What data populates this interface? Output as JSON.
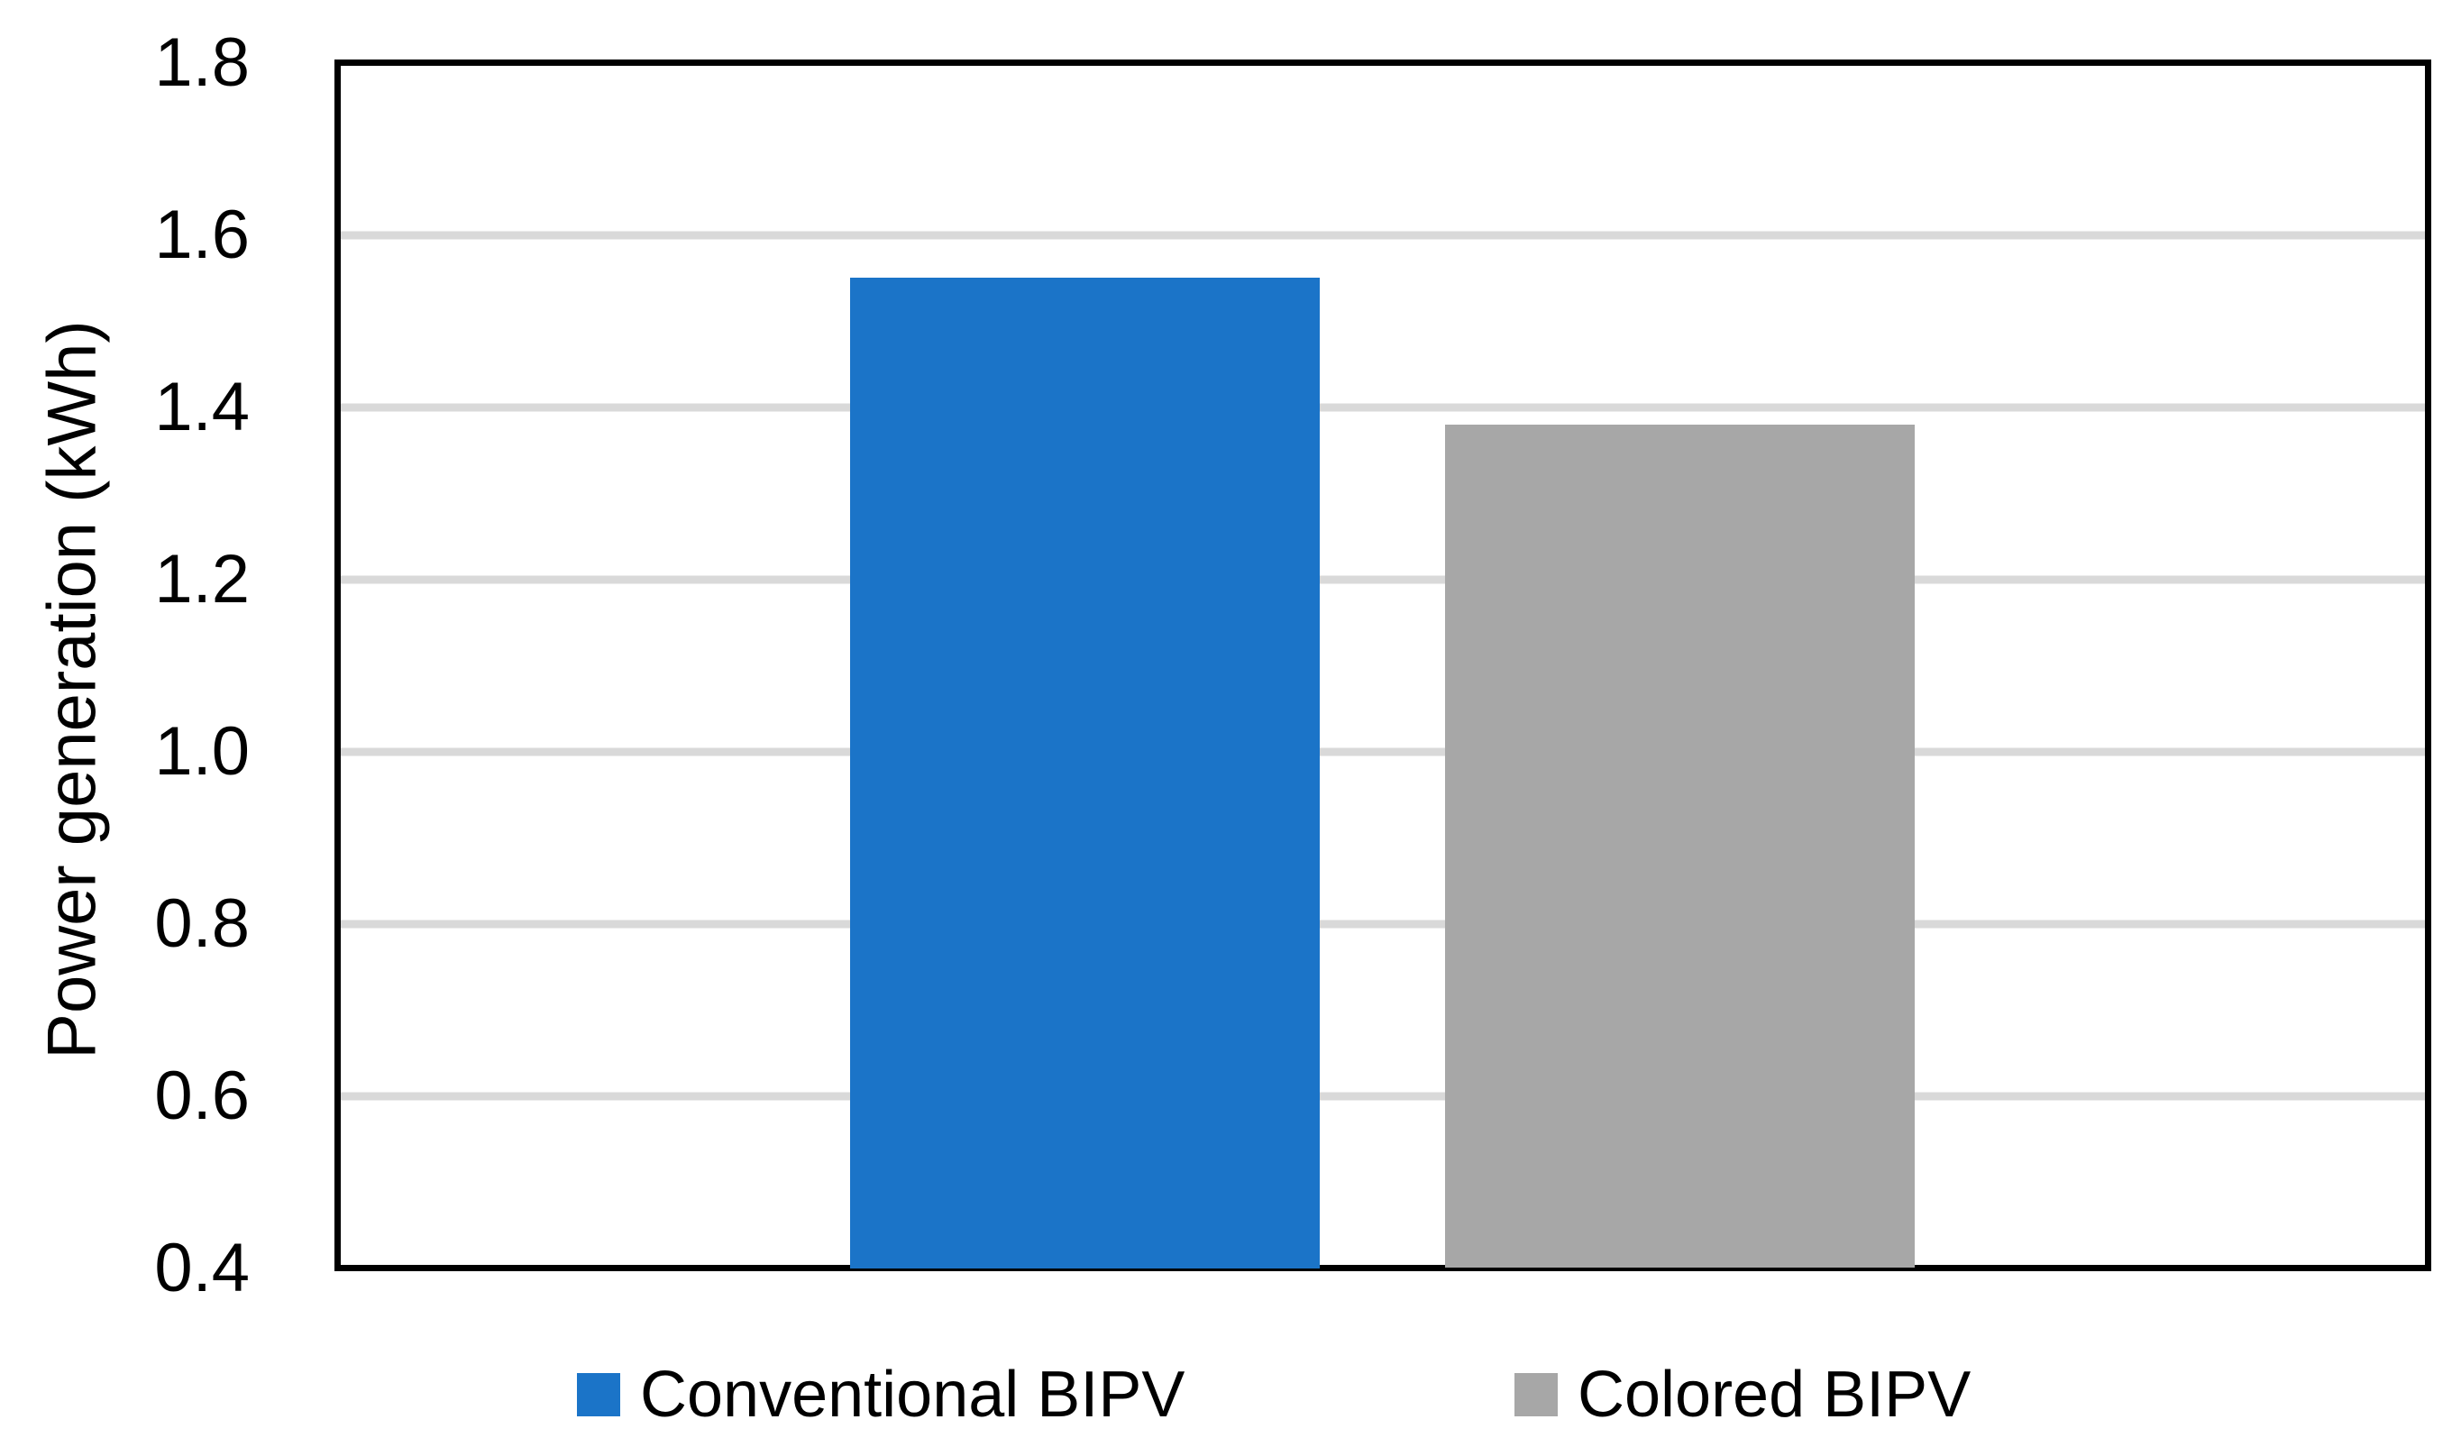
{
  "chart_data": {
    "type": "bar",
    "title": "",
    "xlabel": "",
    "ylabel": "Power generation (kWh)",
    "ylim": [
      0.4,
      1.8
    ],
    "ytick_step": 0.2,
    "yticks": [
      "0.4",
      "0.6",
      "0.8",
      "1.0",
      "1.2",
      "1.4",
      "1.6",
      "1.8"
    ],
    "grid": "horizontal",
    "legend_position": "bottom",
    "series": [
      {
        "name": "Conventional BIPV",
        "value": 1.55,
        "color": "#1B74C8"
      },
      {
        "name": "Colored BIPV",
        "value": 1.38,
        "color": "#A7A7A7"
      }
    ],
    "colors": {
      "axis_border": "#000000",
      "gridline": "#D9D9D9",
      "background": "#FFFFFF",
      "text": "#000000"
    }
  }
}
